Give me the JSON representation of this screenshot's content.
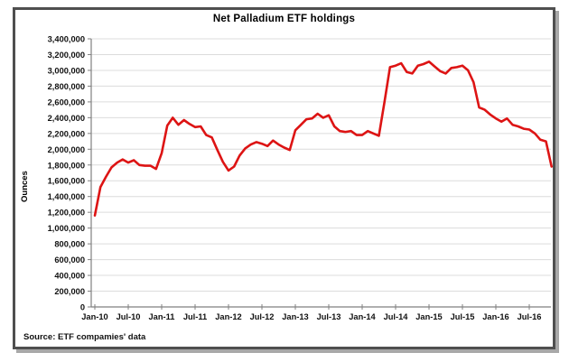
{
  "chart_data": {
    "type": "line",
    "title": "Net Palladium ETF holdings",
    "xlabel": "",
    "ylabel": "Ounces",
    "source": "Source: ETF compamies' data",
    "ylim": [
      0,
      3400000
    ],
    "y_tick_step": 200000,
    "grid": true,
    "legend": "none",
    "line_color": "#dd1414",
    "grid_color": "#dcdcdc",
    "axis_color": "#808080",
    "y_tick_labels": [
      "3,400,000",
      "3,200,000",
      "3,000,000",
      "2,800,000",
      "2,600,000",
      "2,400,000",
      "2,200,000",
      "2,000,000",
      "1,800,000",
      "1,600,000",
      "1,400,000",
      "1,200,000",
      "1,000,000",
      "800,000",
      "600,000",
      "400,000",
      "200,000",
      "0"
    ],
    "x_tick_labels": [
      "Jan-10",
      "Jul-10",
      "Jan-11",
      "Jul-11",
      "Jan-12",
      "Jul-12",
      "Jan-13",
      "Jul-13",
      "Jan-14",
      "Jul-14",
      "Jan-15",
      "Jul-15",
      "Jan-16",
      "Jul-16"
    ],
    "x_tick_interval_months": 6,
    "series": [
      {
        "name": "Net Palladium ETF holdings",
        "start": "Jan-2010",
        "end": "Nov-2016",
        "frequency": "monthly",
        "unit": "ounces",
        "values": [
          1160000,
          1520000,
          1650000,
          1770000,
          1830000,
          1870000,
          1830000,
          1860000,
          1800000,
          1790000,
          1790000,
          1750000,
          1950000,
          2300000,
          2400000,
          2310000,
          2370000,
          2320000,
          2280000,
          2290000,
          2180000,
          2150000,
          1990000,
          1840000,
          1730000,
          1780000,
          1920000,
          2010000,
          2060000,
          2090000,
          2070000,
          2040000,
          2110000,
          2060000,
          2020000,
          1990000,
          2240000,
          2310000,
          2380000,
          2390000,
          2450000,
          2400000,
          2430000,
          2290000,
          2230000,
          2220000,
          2230000,
          2180000,
          2180000,
          2230000,
          2200000,
          2170000,
          2600000,
          3040000,
          3060000,
          3090000,
          2980000,
          2960000,
          3060000,
          3080000,
          3110000,
          3050000,
          2990000,
          2960000,
          3030000,
          3040000,
          3060000,
          3000000,
          2850000,
          2530000,
          2500000,
          2440000,
          2390000,
          2350000,
          2390000,
          2310000,
          2290000,
          2260000,
          2250000,
          2200000,
          2120000,
          2100000,
          1780000
        ]
      }
    ]
  }
}
